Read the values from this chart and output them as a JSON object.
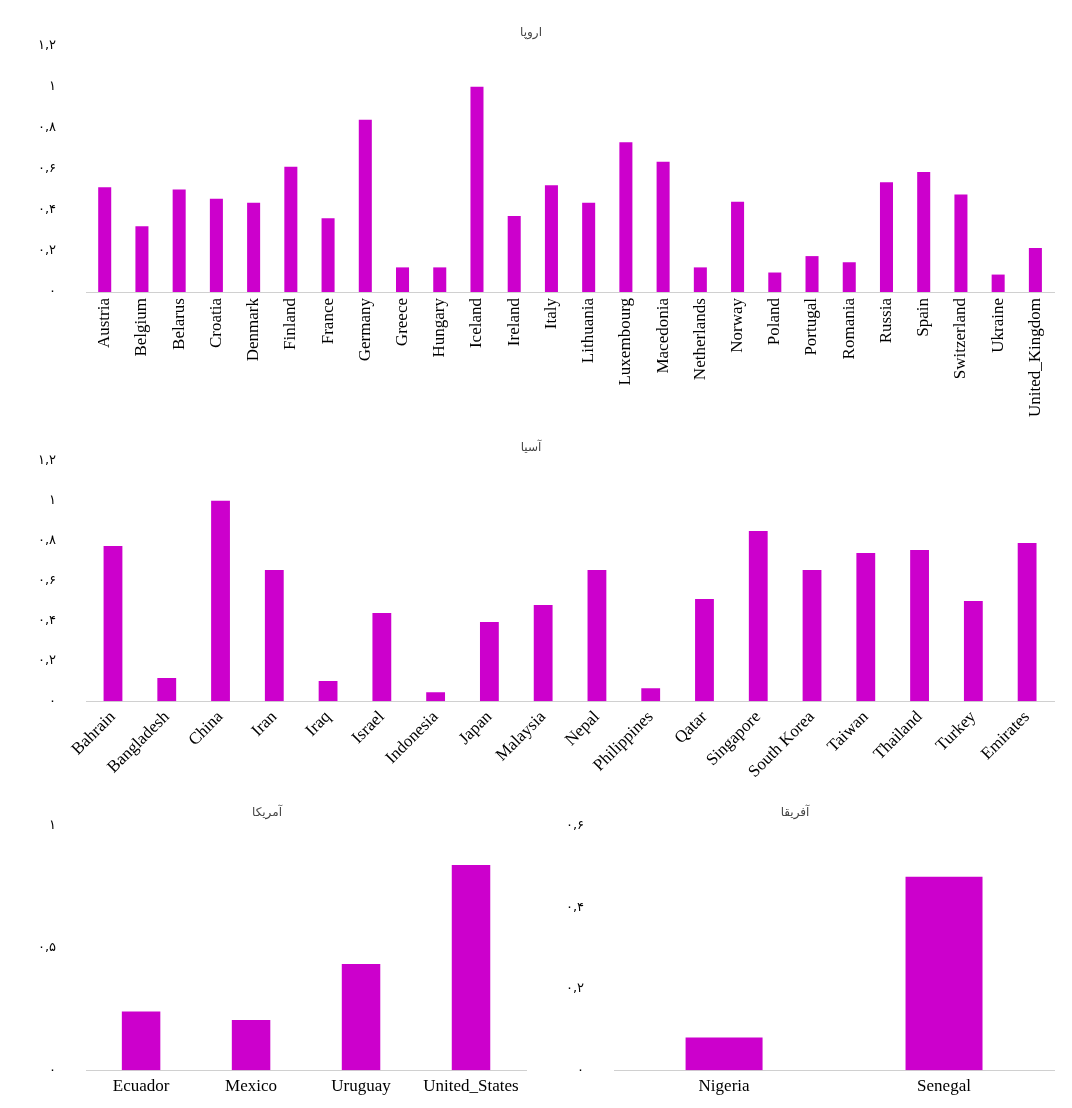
{
  "chart_data": [
    {
      "type": "bar",
      "title": "اروپا",
      "categories": [
        "Austria",
        "Belgium",
        "Belarus",
        "Croatia",
        "Denmark",
        "Finland",
        "France",
        "Germany",
        "Greece",
        "Hungary",
        "Iceland",
        "Ireland",
        "Italy",
        "Lithuania",
        "Luxembourg",
        "Macedonia",
        "Netherlands",
        "Norway",
        "Poland",
        "Portugal",
        "Romania",
        "Russia",
        "Spain",
        "Switzerland",
        "Ukraine",
        "United_Kingdom"
      ],
      "values": [
        0.51,
        0.32,
        0.5,
        0.455,
        0.435,
        0.61,
        0.36,
        0.84,
        0.12,
        0.12,
        1.0,
        0.37,
        0.52,
        0.435,
        0.73,
        0.635,
        0.12,
        0.44,
        0.095,
        0.175,
        0.145,
        0.535,
        0.585,
        0.475,
        0.085,
        0.215
      ],
      "color": "#cc00cc",
      "ylim": [
        0,
        1.2
      ],
      "yticks": [
        {
          "value": 0,
          "label": "۰"
        },
        {
          "value": 0.2,
          "label": "۰,۲"
        },
        {
          "value": 0.4,
          "label": "۰,۴"
        },
        {
          "value": 0.6,
          "label": "۰,۶"
        },
        {
          "value": 0.8,
          "label": "۰,۸"
        },
        {
          "value": 1,
          "label": "۱"
        },
        {
          "value": 1.2,
          "label": "۱,۲"
        }
      ],
      "grid": false,
      "legend": false
    },
    {
      "type": "bar",
      "title": "آسیا",
      "categories": [
        "Bahrain",
        "Bangladesh",
        "China",
        "Iran",
        "Iraq",
        "Israel",
        "Indonesia",
        "Japan",
        "Malaysia",
        "Nepal",
        "Philippines",
        "Qatar",
        "Singapore",
        "South Korea",
        "Taiwan",
        "Thailand",
        "Turkey",
        "Emirates"
      ],
      "values": [
        0.775,
        0.115,
        1.0,
        0.655,
        0.1,
        0.44,
        0.045,
        0.395,
        0.48,
        0.655,
        0.065,
        0.51,
        0.85,
        0.655,
        0.74,
        0.755,
        0.5,
        0.79
      ],
      "color": "#cc00cc",
      "ylim": [
        0,
        1.2
      ],
      "yticks": [
        {
          "value": 0,
          "label": "۰"
        },
        {
          "value": 0.2,
          "label": "۰,۲"
        },
        {
          "value": 0.4,
          "label": "۰,۴"
        },
        {
          "value": 0.6,
          "label": "۰,۶"
        },
        {
          "value": 0.8,
          "label": "۰,۸"
        },
        {
          "value": 1,
          "label": "۱"
        },
        {
          "value": 1.2,
          "label": "۱,۲"
        }
      ],
      "grid": false,
      "legend": false
    },
    {
      "type": "bar",
      "title": "آمریکا",
      "categories": [
        "Ecuador",
        "Mexico",
        "Uruguay",
        "United_States"
      ],
      "values": [
        0.24,
        0.205,
        0.435,
        0.84
      ],
      "color": "#cc00cc",
      "ylim": [
        0,
        1
      ],
      "yticks": [
        {
          "value": 0,
          "label": "۰"
        },
        {
          "value": 0.5,
          "label": "۰,۵"
        },
        {
          "value": 1,
          "label": "۱"
        }
      ],
      "grid": false,
      "legend": false
    },
    {
      "type": "bar",
      "title": "آفریقا",
      "categories": [
        "Nigeria",
        "Senegal"
      ],
      "values": [
        0.08,
        0.475
      ],
      "color": "#cc00cc",
      "ylim": [
        0,
        0.6
      ],
      "yticks": [
        {
          "value": 0,
          "label": "۰"
        },
        {
          "value": 0.2,
          "label": "۰,۲"
        },
        {
          "value": 0.4,
          "label": "۰,۴"
        },
        {
          "value": 0.6,
          "label": "۰,۶"
        }
      ],
      "grid": false,
      "legend": false
    }
  ]
}
